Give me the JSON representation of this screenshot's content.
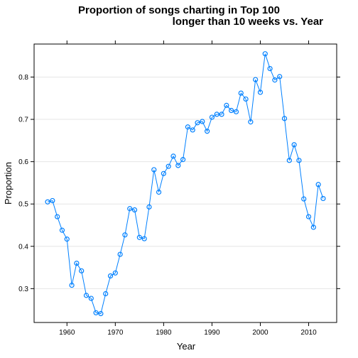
{
  "chart_data": {
    "type": "line",
    "title_lines": [
      "Proportion of songs charting in Top 100",
      "longer than 10 weeks vs. Year"
    ],
    "xlabel": "Year",
    "ylabel": "Proportion",
    "xlim": [
      1953.2,
      2015.8
    ],
    "ylim": [
      0.22,
      0.878
    ],
    "x_ticks": [
      1960,
      1970,
      1980,
      1990,
      2000,
      2010
    ],
    "y_ticks": [
      0.3,
      0.4,
      0.5,
      0.6,
      0.7,
      0.8
    ],
    "x_tick_labels": [
      "1960",
      "1970",
      "1980",
      "1990",
      "2000",
      "2010"
    ],
    "y_tick_labels": [
      "0.3",
      "0.4",
      "0.5",
      "0.6",
      "0.7",
      "0.8"
    ],
    "grid": "horizontal",
    "color": "#0080ff",
    "series": [
      {
        "x": [
          1956,
          1957,
          1958,
          1959,
          1960,
          1961,
          1962,
          1963,
          1964,
          1965,
          1966,
          1967,
          1968,
          1969,
          1970,
          1971,
          1972,
          1973,
          1974,
          1975,
          1976,
          1977,
          1978,
          1979,
          1980,
          1981,
          1982,
          1983,
          1984,
          1985,
          1986,
          1987,
          1988,
          1989,
          1990,
          1991,
          1992,
          1993,
          1994,
          1995,
          1996,
          1997,
          1998,
          1999,
          2000,
          2001,
          2002,
          2003,
          2004,
          2005,
          2006,
          2007,
          2008,
          2009,
          2010,
          2011,
          2012,
          2013
        ],
        "values": [
          0.505,
          0.508,
          0.47,
          0.438,
          0.417,
          0.308,
          0.36,
          0.342,
          0.284,
          0.277,
          0.243,
          0.241,
          0.288,
          0.33,
          0.337,
          0.381,
          0.427,
          0.489,
          0.486,
          0.421,
          0.418,
          0.493,
          0.581,
          0.528,
          0.572,
          0.589,
          0.613,
          0.591,
          0.605,
          0.682,
          0.675,
          0.692,
          0.695,
          0.672,
          0.705,
          0.712,
          0.712,
          0.733,
          0.721,
          0.718,
          0.762,
          0.748,
          0.694,
          0.794,
          0.764,
          0.855,
          0.82,
          0.793,
          0.801,
          0.702,
          0.603,
          0.64,
          0.603,
          0.512,
          0.47,
          0.445,
          0.546,
          0.513
        ]
      }
    ]
  }
}
